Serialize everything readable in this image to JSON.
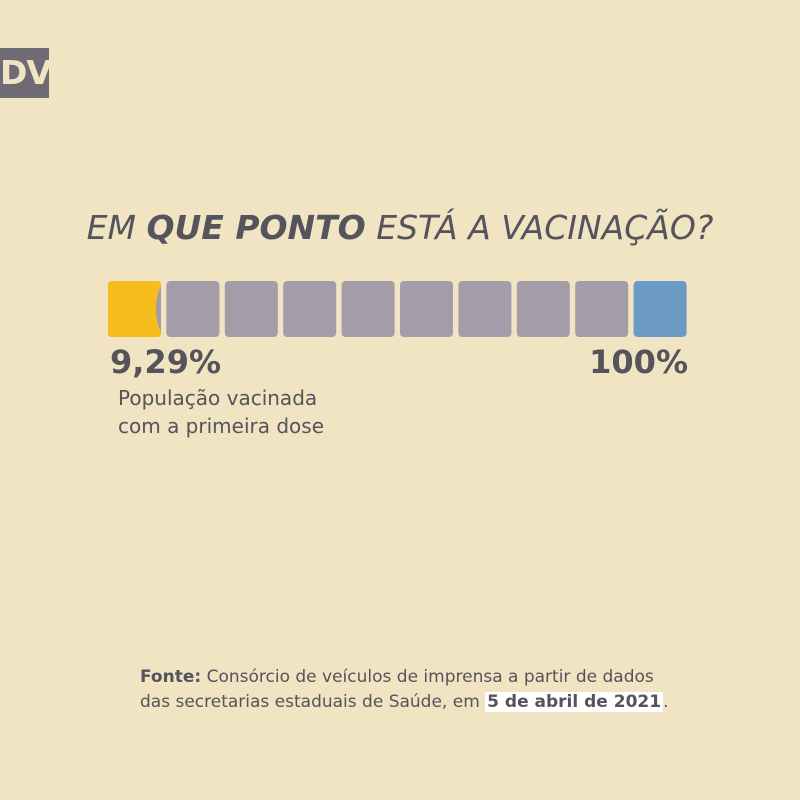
{
  "brand": {
    "logo_text": "DV"
  },
  "title": {
    "part1": "EM ",
    "emphasis": "QUE PONTO",
    "part2": " ESTÁ A VACINAÇÃO?"
  },
  "chart_data": {
    "type": "progress",
    "value_percent": 9.29,
    "max_percent": 100,
    "segments": 10,
    "value_label": "9,29%",
    "max_label": "100%",
    "caption_lines": [
      "População vacinada",
      "com a primeira dose"
    ]
  },
  "colors": {
    "background": "#f0e4c3",
    "filled": "#f6bd1d",
    "empty": "#a39ca9",
    "target": "#6b9bc4",
    "text": "#55535b"
  },
  "source": {
    "label": "Fonte:",
    "line1": " Consórcio de veículos de imprensa a partir de dados",
    "line2": "das secretarias estaduais de Saúde, em ",
    "date": "5 de abril de 2021",
    "end": "."
  }
}
